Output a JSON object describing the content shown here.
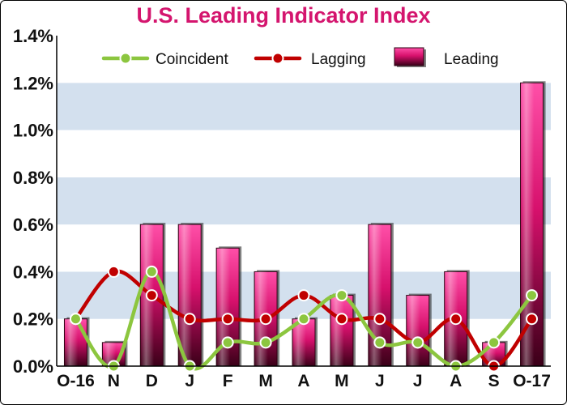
{
  "chart_data": {
    "type": "bar",
    "title": "U.S. Leading Indicator Index",
    "categories": [
      "O-16",
      "N",
      "D",
      "J",
      "F",
      "M",
      "A",
      "M",
      "J",
      "J",
      "A",
      "S",
      "O-17"
    ],
    "series": [
      {
        "name": "Coincident",
        "type": "line",
        "color": "#8cc63f",
        "values": [
          0.2,
          0.0,
          0.4,
          0.0,
          0.1,
          0.1,
          0.2,
          0.3,
          0.1,
          0.1,
          0.0,
          0.1,
          0.3
        ]
      },
      {
        "name": "Lagging",
        "type": "line",
        "color": "#c00000",
        "values": [
          0.2,
          0.4,
          0.3,
          0.2,
          0.2,
          0.2,
          0.3,
          0.2,
          0.2,
          0.1,
          0.2,
          0.0,
          0.2
        ]
      },
      {
        "name": "Leading",
        "type": "bar",
        "color": "#e0187a",
        "values": [
          0.2,
          0.1,
          0.6,
          0.6,
          0.5,
          0.4,
          0.2,
          0.3,
          0.6,
          0.3,
          0.4,
          0.1,
          1.2
        ]
      }
    ],
    "ylim": [
      0,
      1.4
    ],
    "yticks": [
      "0.0%",
      "0.2%",
      "0.4%",
      "0.6%",
      "0.8%",
      "1.0%",
      "1.2%",
      "1.4%"
    ],
    "grid": "alternating horizontal bands",
    "legend": "top-center",
    "xlabel": "",
    "ylabel": ""
  }
}
